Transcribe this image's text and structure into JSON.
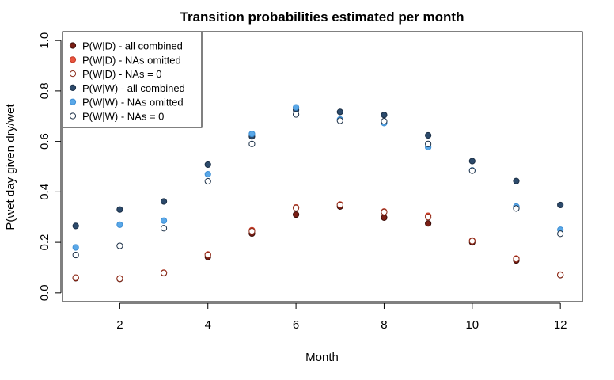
{
  "chart_data": {
    "type": "scatter",
    "title": "Transition probabilities estimated per month",
    "xlabel": "Month",
    "ylabel": "P(wet day given dry/wet",
    "xlim": [
      0.7,
      12.5
    ],
    "ylim": [
      -0.035,
      1.035
    ],
    "xticks": [
      "2",
      "4",
      "6",
      "8",
      "10",
      "12"
    ],
    "yticks": [
      "0.0",
      "0.2",
      "0.4",
      "0.6",
      "0.8",
      "1.0"
    ],
    "legend_position": "top-left",
    "x": [
      1,
      2,
      3,
      4,
      5,
      6,
      7,
      8,
      9,
      10,
      11,
      12
    ],
    "series": [
      {
        "name": "P(W|D) - all combined",
        "style": "filled",
        "color": "#7a1e14",
        "stroke": "#3a0c08",
        "values": [
          0.058,
          0.055,
          0.078,
          0.142,
          0.235,
          0.31,
          0.342,
          0.298,
          0.275,
          0.2,
          0.128,
          0.07
        ]
      },
      {
        "name": "P(W|D) - NAs omitted",
        "style": "filled",
        "color": "#e8553f",
        "stroke": "#c43a26",
        "values": [
          0.06,
          0.057,
          0.08,
          0.152,
          0.248,
          0.338,
          0.35,
          0.322,
          0.305,
          0.207,
          0.136,
          0.072
        ]
      },
      {
        "name": "P(W|D) - NAs = 0",
        "style": "open",
        "color": "#ffffff",
        "stroke": "#8a2a18",
        "values": [
          0.06,
          0.056,
          0.079,
          0.15,
          0.244,
          0.336,
          0.348,
          0.32,
          0.3,
          0.205,
          0.134,
          0.071
        ]
      },
      {
        "name": "P(W|W) - all combined",
        "style": "filled",
        "color": "#2c4a6b",
        "stroke": "#1b2f46",
        "values": [
          0.265,
          0.33,
          0.362,
          0.508,
          0.62,
          0.725,
          0.717,
          0.705,
          0.624,
          0.522,
          0.443,
          0.348
        ]
      },
      {
        "name": "P(W|W) - NAs omitted",
        "style": "filled",
        "color": "#5aa8e8",
        "stroke": "#3d8ed4",
        "values": [
          0.18,
          0.27,
          0.286,
          0.47,
          0.63,
          0.735,
          0.687,
          0.673,
          0.577,
          0.485,
          0.342,
          0.25
        ]
      },
      {
        "name": "P(W|W) - NAs = 0",
        "style": "open",
        "color": "#ffffff",
        "stroke": "#1b2f46",
        "values": [
          0.15,
          0.186,
          0.256,
          0.442,
          0.59,
          0.707,
          0.682,
          0.68,
          0.59,
          0.484,
          0.334,
          0.234
        ]
      }
    ]
  }
}
